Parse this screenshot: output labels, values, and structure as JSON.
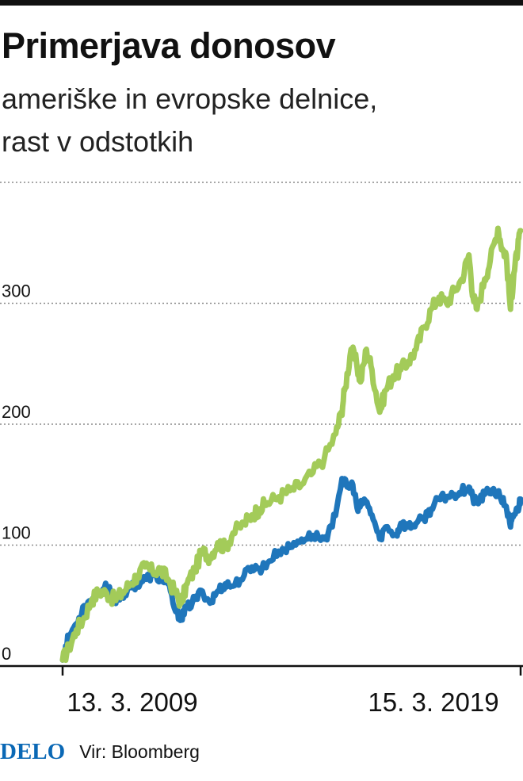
{
  "title": "Primerjava donosov",
  "subtitle_line1": "ameriške in evropske delnice,",
  "subtitle_line2": "rast v odstotkih",
  "footer": {
    "logo": "DELO",
    "source": "Vir: Bloomberg"
  },
  "colors": {
    "green_series": "#a3cb59",
    "blue_series": "#1f76bb",
    "gridline": "#8a8a8a",
    "logo": "#0a68b5",
    "text": "#111111"
  },
  "chart_data": {
    "type": "line",
    "title": "Primerjava donosov",
    "subtitle": "ameriške in evropske delnice, rast v odstotkih",
    "xlabel": "",
    "ylabel": "",
    "x_tick_labels": [
      "13. 3. 2009",
      "15. 3. 2019"
    ],
    "xlim": [
      "2009-03-13",
      "2019-03-15"
    ],
    "y_ticks": [
      0,
      100,
      200,
      300
    ],
    "y_tick_labels": [
      "0",
      "100",
      "200",
      "300"
    ],
    "ylim": [
      0,
      400
    ],
    "grid": "dotted horizontal",
    "legend": "none",
    "series": [
      {
        "color": "#a3cb59",
        "points": [
          [
            "2009-03-13",
            5
          ],
          [
            "2009-05-01",
            15
          ],
          [
            "2009-07-01",
            30
          ],
          [
            "2009-09-01",
            40
          ],
          [
            "2009-11-01",
            55
          ],
          [
            "2010-01-01",
            62
          ],
          [
            "2010-03-01",
            60
          ],
          [
            "2010-05-01",
            55
          ],
          [
            "2010-07-01",
            60
          ],
          [
            "2010-09-01",
            68
          ],
          [
            "2010-11-01",
            75
          ],
          [
            "2011-01-01",
            82
          ],
          [
            "2011-03-01",
            78
          ],
          [
            "2011-05-01",
            80
          ],
          [
            "2011-07-01",
            72
          ],
          [
            "2011-09-01",
            60
          ],
          [
            "2011-10-15",
            52
          ],
          [
            "2011-12-01",
            68
          ],
          [
            "2012-02-01",
            80
          ],
          [
            "2012-04-01",
            95
          ],
          [
            "2012-06-01",
            90
          ],
          [
            "2012-08-01",
            102
          ],
          [
            "2012-10-01",
            98
          ],
          [
            "2012-12-01",
            110
          ],
          [
            "2013-03-01",
            118
          ],
          [
            "2013-05-01",
            125
          ],
          [
            "2013-07-01",
            130
          ],
          [
            "2013-09-01",
            135
          ],
          [
            "2013-12-01",
            140
          ],
          [
            "2014-03-01",
            145
          ],
          [
            "2014-06-01",
            150
          ],
          [
            "2014-09-01",
            160
          ],
          [
            "2014-12-01",
            172
          ],
          [
            "2015-03-01",
            192
          ],
          [
            "2015-04-15",
            210
          ],
          [
            "2015-05-15",
            230
          ],
          [
            "2015-07-01",
            262
          ],
          [
            "2015-08-15",
            250
          ],
          [
            "2015-09-15",
            235
          ],
          [
            "2015-11-01",
            262
          ],
          [
            "2015-12-15",
            245
          ],
          [
            "2016-02-15",
            210
          ],
          [
            "2016-04-01",
            228
          ],
          [
            "2016-06-01",
            240
          ],
          [
            "2016-08-01",
            245
          ],
          [
            "2016-10-01",
            252
          ],
          [
            "2016-12-01",
            262
          ],
          [
            "2017-02-01",
            280
          ],
          [
            "2017-04-01",
            295
          ],
          [
            "2017-06-01",
            305
          ],
          [
            "2017-08-01",
            300
          ],
          [
            "2017-10-01",
            310
          ],
          [
            "2017-12-01",
            320
          ],
          [
            "2018-01-26",
            340
          ],
          [
            "2018-03-01",
            305
          ],
          [
            "2018-04-01",
            295
          ],
          [
            "2018-06-01",
            320
          ],
          [
            "2018-07-15",
            335
          ],
          [
            "2018-09-15",
            362
          ],
          [
            "2018-10-20",
            345
          ],
          [
            "2018-11-20",
            340
          ],
          [
            "2018-12-24",
            295
          ],
          [
            "2019-01-20",
            325
          ],
          [
            "2019-02-20",
            345
          ],
          [
            "2019-03-15",
            360
          ]
        ]
      },
      {
        "color": "#1f76bb",
        "points": [
          [
            "2009-03-13",
            5
          ],
          [
            "2009-05-01",
            25
          ],
          [
            "2009-07-01",
            35
          ],
          [
            "2009-09-01",
            50
          ],
          [
            "2009-11-01",
            55
          ],
          [
            "2010-01-01",
            62
          ],
          [
            "2010-03-01",
            65
          ],
          [
            "2010-05-01",
            55
          ],
          [
            "2010-07-01",
            58
          ],
          [
            "2010-09-01",
            65
          ],
          [
            "2010-11-01",
            68
          ],
          [
            "2011-01-01",
            72
          ],
          [
            "2011-03-01",
            75
          ],
          [
            "2011-05-01",
            72
          ],
          [
            "2011-07-01",
            68
          ],
          [
            "2011-09-01",
            45
          ],
          [
            "2011-10-15",
            40
          ],
          [
            "2011-12-01",
            48
          ],
          [
            "2012-02-01",
            55
          ],
          [
            "2012-04-01",
            62
          ],
          [
            "2012-06-01",
            52
          ],
          [
            "2012-08-01",
            62
          ],
          [
            "2012-10-01",
            68
          ],
          [
            "2012-12-01",
            66
          ],
          [
            "2013-03-01",
            75
          ],
          [
            "2013-05-01",
            82
          ],
          [
            "2013-07-01",
            80
          ],
          [
            "2013-09-01",
            85
          ],
          [
            "2013-12-01",
            95
          ],
          [
            "2014-03-01",
            98
          ],
          [
            "2014-06-01",
            105
          ],
          [
            "2014-09-01",
            108
          ],
          [
            "2014-12-01",
            105
          ],
          [
            "2015-02-01",
            115
          ],
          [
            "2015-04-20",
            155
          ],
          [
            "2015-06-01",
            148
          ],
          [
            "2015-07-15",
            150
          ],
          [
            "2015-08-25",
            128
          ],
          [
            "2015-10-15",
            138
          ],
          [
            "2015-12-15",
            125
          ],
          [
            "2016-02-15",
            105
          ],
          [
            "2016-04-01",
            115
          ],
          [
            "2016-06-27",
            108
          ],
          [
            "2016-08-01",
            118
          ],
          [
            "2016-10-01",
            115
          ],
          [
            "2016-12-01",
            118
          ],
          [
            "2017-02-01",
            122
          ],
          [
            "2017-04-01",
            130
          ],
          [
            "2017-06-01",
            138
          ],
          [
            "2017-08-01",
            140
          ],
          [
            "2017-10-01",
            142
          ],
          [
            "2017-12-01",
            145
          ],
          [
            "2018-01-26",
            148
          ],
          [
            "2018-03-01",
            138
          ],
          [
            "2018-04-01",
            135
          ],
          [
            "2018-06-01",
            142
          ],
          [
            "2018-08-01",
            146
          ],
          [
            "2018-10-01",
            140
          ],
          [
            "2018-11-20",
            132
          ],
          [
            "2018-12-24",
            115
          ],
          [
            "2019-01-20",
            125
          ],
          [
            "2019-02-20",
            130
          ],
          [
            "2019-03-15",
            138
          ]
        ]
      }
    ]
  }
}
